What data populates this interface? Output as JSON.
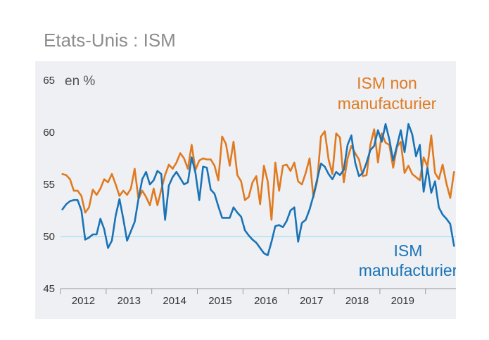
{
  "title": "Etats-Unis : ISM",
  "colors": {
    "manufacturing": "#1a73b6",
    "non_manufacturing": "#e07a20",
    "reference_line": "#a8e4f0",
    "panel_bg": "#eef0f4"
  },
  "chart_data": {
    "type": "line",
    "title": "Etats-Unis : ISM",
    "ylabel": "en %",
    "xlabel": "",
    "ylim": [
      45,
      65
    ],
    "yticks": [
      "45",
      "50",
      "55",
      "60",
      "65"
    ],
    "year_labels": [
      "2012",
      "2013",
      "2014",
      "2015",
      "2016",
      "2017",
      "2018",
      "2019"
    ],
    "reference_line": 50,
    "start": "2012-01",
    "series": [
      {
        "name": "ISM manufacturier",
        "label_lines": [
          "ISM",
          "manufacturier"
        ],
        "color": "#1a73b6",
        "values": [
          52.6,
          53.1,
          53.4,
          53.5,
          53.5,
          52.5,
          49.7,
          49.9,
          50.2,
          50.2,
          51.7,
          50.7,
          48.9,
          49.6,
          52.0,
          53.6,
          51.7,
          49.6,
          50.5,
          51.4,
          53.6,
          55.5,
          56.2,
          55.0,
          55.4,
          56.3,
          56.0,
          51.6,
          54.9,
          55.7,
          56.2,
          55.6,
          55.0,
          55.2,
          57.6,
          56.1,
          53.5,
          56.7,
          56.6,
          54.5,
          54.1,
          52.9,
          51.8,
          51.8,
          51.8,
          52.8,
          52.3,
          51.9,
          50.6,
          50.1,
          49.7,
          49.4,
          48.9,
          48.4,
          48.2,
          49.5,
          51.0,
          51.1,
          50.9,
          51.5,
          52.5,
          52.8,
          49.5,
          51.3,
          51.6,
          52.6,
          53.9,
          55.5,
          57.0,
          56.7,
          56.0,
          55.5,
          56.2,
          55.9,
          56.4,
          58.8,
          59.7,
          57.1,
          55.8,
          56.1,
          57.1,
          58.3,
          58.7,
          60.2,
          59.1,
          60.8,
          59.3,
          57.3,
          58.7,
          60.2,
          58.1,
          60.8,
          59.8,
          57.7,
          58.8,
          54.3,
          56.6,
          54.2,
          55.3,
          52.8,
          52.1,
          51.7,
          51.2,
          49.1
        ]
      },
      {
        "name": "ISM non manufacturier",
        "label_lines": [
          "ISM non",
          "manufacturier"
        ],
        "color": "#e07a20",
        "values": [
          56.0,
          55.9,
          55.5,
          54.4,
          54.4,
          53.9,
          52.3,
          52.8,
          54.5,
          54.0,
          54.6,
          55.5,
          55.2,
          56.0,
          55.0,
          53.9,
          54.4,
          54.0,
          54.6,
          56.5,
          53.6,
          54.4,
          53.8,
          53.0,
          54.6,
          53.0,
          54.5,
          55.9,
          56.9,
          56.5,
          57.1,
          58.0,
          57.5,
          56.5,
          58.8,
          56.4,
          57.3,
          57.5,
          57.4,
          57.4,
          56.8,
          55.4,
          59.6,
          58.9,
          56.8,
          59.1,
          55.9,
          55.3,
          53.5,
          53.8,
          55.2,
          55.8,
          53.1,
          56.8,
          55.3,
          51.6,
          57.1,
          54.4,
          56.8,
          56.9,
          56.3,
          57.1,
          55.3,
          55.0,
          56.1,
          57.5,
          53.8,
          55.3,
          59.6,
          60.1,
          57.4,
          56.0,
          59.9,
          59.5,
          55.2,
          57.5,
          58.7,
          58.0,
          57.4,
          55.8,
          55.9,
          58.8,
          60.3,
          57.1,
          59.9,
          59.0,
          58.8,
          56.6,
          58.6,
          59.1,
          56.1,
          56.8,
          56.0,
          55.7,
          55.4,
          57.6,
          56.7,
          59.7,
          56.1,
          55.5,
          56.9,
          55.1,
          53.7,
          56.2
        ]
      }
    ]
  }
}
